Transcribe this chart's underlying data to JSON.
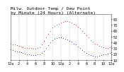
{
  "title_line1": "Milw. Outdoor Temp / Dew Point",
  "title_line2": "by Minute (24 Hours) (Alternate)",
  "bg_color": "#ffffff",
  "plot_bg_color": "#ffffff",
  "grid_color": "#aaaaaa",
  "temp_color": "#dd0000",
  "dew_color": "#0000cc",
  "ylim": [
    10,
    88
  ],
  "xlim": [
    0,
    1440
  ],
  "yticks": [
    10,
    20,
    30,
    40,
    50,
    60,
    70,
    80
  ],
  "ytick_labels": [
    "10",
    "20",
    "30",
    "40",
    "50",
    "60",
    "70",
    "80"
  ],
  "xtick_positions": [
    0,
    120,
    240,
    360,
    480,
    600,
    720,
    840,
    960,
    1080,
    1200,
    1320,
    1440
  ],
  "xtick_labels": [
    "12a",
    "2",
    "4",
    "6",
    "8",
    "10",
    "12p",
    "2",
    "4",
    "6",
    "8",
    "10",
    "12a"
  ],
  "vgrid_positions": [
    0,
    120,
    240,
    360,
    480,
    600,
    720,
    840,
    960,
    1080,
    1200,
    1320,
    1440
  ],
  "temp_x": [
    0,
    30,
    60,
    90,
    120,
    150,
    180,
    210,
    240,
    270,
    300,
    330,
    360,
    390,
    420,
    450,
    480,
    510,
    540,
    570,
    600,
    630,
    660,
    690,
    720,
    750,
    780,
    810,
    840,
    870,
    900,
    930,
    960,
    990,
    1020,
    1050,
    1080,
    1110,
    1140,
    1170,
    1200,
    1230,
    1260,
    1290,
    1320,
    1350,
    1380,
    1410,
    1440
  ],
  "temp_y": [
    38,
    37,
    36,
    35,
    34,
    33,
    32,
    31,
    31,
    30,
    30,
    29,
    29,
    30,
    32,
    36,
    42,
    48,
    54,
    60,
    65,
    68,
    70,
    72,
    74,
    75,
    76,
    76,
    75,
    74,
    72,
    70,
    67,
    64,
    60,
    56,
    52,
    48,
    44,
    41,
    38,
    36,
    34,
    33,
    32,
    31,
    31,
    32,
    33
  ],
  "dew_x": [
    0,
    30,
    60,
    90,
    120,
    150,
    180,
    210,
    240,
    270,
    300,
    330,
    360,
    390,
    420,
    450,
    480,
    510,
    540,
    570,
    600,
    630,
    660,
    690,
    720,
    750,
    780,
    810,
    840,
    870,
    900,
    930,
    960,
    990,
    1020,
    1050,
    1080,
    1110,
    1140,
    1170,
    1200,
    1230,
    1260,
    1290,
    1320,
    1350,
    1380,
    1410,
    1440
  ],
  "dew_y": [
    28,
    27,
    26,
    25,
    24,
    23,
    22,
    21,
    20,
    19,
    18,
    18,
    18,
    19,
    20,
    22,
    26,
    30,
    35,
    40,
    44,
    46,
    47,
    48,
    48,
    47,
    46,
    45,
    43,
    41,
    38,
    36,
    33,
    30,
    27,
    24,
    22,
    20,
    18,
    17,
    16,
    16,
    17,
    18,
    19,
    20,
    21,
    22,
    23
  ],
  "marker_size": 1.2,
  "title_fontsize": 4.5,
  "tick_fontsize": 3.5
}
